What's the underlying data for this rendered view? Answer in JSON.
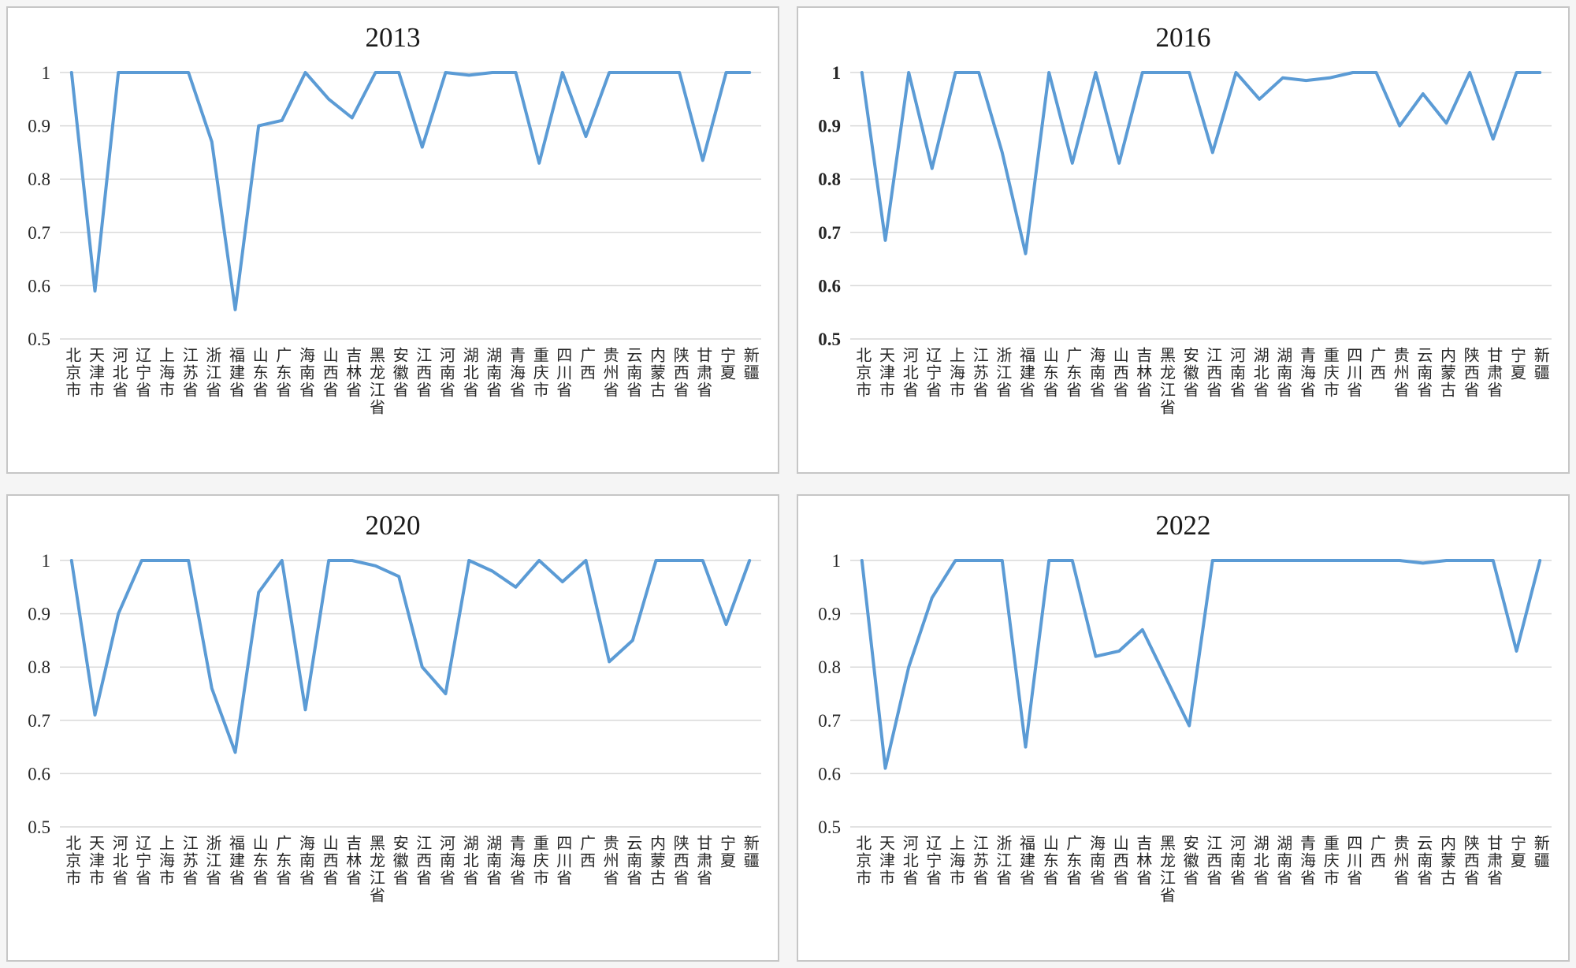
{
  "chart_data": [
    {
      "type": "line",
      "title": "2013",
      "categories": [
        "北京市",
        "天津市",
        "河北省",
        "辽宁省",
        "上海市",
        "江苏省",
        "浙江省",
        "福建省",
        "山东省",
        "广东省",
        "海南省",
        "山西省",
        "吉林省",
        "黑龙江省",
        "安徽省",
        "江西省",
        "河南省",
        "湖北省",
        "湖南省",
        "青海省",
        "重庆市",
        "四川省",
        "广西",
        "贵州省",
        "云南省",
        "内蒙古",
        "陕西省",
        "甘肃省",
        "宁夏",
        "新疆"
      ],
      "values": [
        1,
        0.59,
        1,
        1,
        1,
        1,
        0.87,
        0.555,
        0.9,
        0.91,
        1,
        0.95,
        0.915,
        1,
        1,
        0.86,
        1,
        0.995,
        1,
        1,
        0.83,
        1,
        0.88,
        1,
        1,
        1,
        1,
        0.835,
        1,
        1
      ],
      "ylim": [
        0.5,
        1.0
      ],
      "yticks": [
        0.5,
        0.6,
        0.7,
        0.8,
        0.9,
        1
      ],
      "ytick_labels": [
        "0.5",
        "0.6",
        "0.7",
        "0.8",
        "0.9",
        "1"
      ],
      "ytick_bold": false,
      "line_color": "#5B9BD5",
      "grid": true,
      "legend": "none"
    },
    {
      "type": "line",
      "title": "2016",
      "categories": [
        "北京市",
        "天津市",
        "河北省",
        "辽宁省",
        "上海市",
        "江苏省",
        "浙江省",
        "福建省",
        "山东省",
        "广东省",
        "海南省",
        "山西省",
        "吉林省",
        "黑龙江省",
        "安徽省",
        "江西省",
        "河南省",
        "湖北省",
        "湖南省",
        "青海省",
        "重庆市",
        "四川省",
        "广西",
        "贵州省",
        "云南省",
        "内蒙古",
        "陕西省",
        "甘肃省",
        "宁夏",
        "新疆"
      ],
      "values": [
        1,
        0.685,
        1,
        0.82,
        1,
        1,
        0.85,
        0.66,
        1,
        0.83,
        1,
        0.83,
        1,
        1,
        1,
        0.85,
        1,
        0.95,
        0.99,
        0.985,
        0.99,
        1,
        1,
        0.9,
        0.96,
        0.905,
        1,
        0.875,
        1,
        1
      ],
      "ylim": [
        0.5,
        1.0
      ],
      "yticks": [
        0.5,
        0.6,
        0.7,
        0.8,
        0.9,
        1
      ],
      "ytick_labels": [
        "0.5",
        "0.6",
        "0.7",
        "0.8",
        "0.9",
        "1"
      ],
      "ytick_bold": true,
      "line_color": "#5B9BD5",
      "grid": true,
      "legend": "none"
    },
    {
      "type": "line",
      "title": "2020",
      "categories": [
        "北京市",
        "天津市",
        "河北省",
        "辽宁省",
        "上海市",
        "江苏省",
        "浙江省",
        "福建省",
        "山东省",
        "广东省",
        "海南省",
        "山西省",
        "吉林省",
        "黑龙江省",
        "安徽省",
        "江西省",
        "河南省",
        "湖北省",
        "湖南省",
        "青海省",
        "重庆市",
        "四川省",
        "广西",
        "贵州省",
        "云南省",
        "内蒙古",
        "陕西省",
        "甘肃省",
        "宁夏",
        "新疆"
      ],
      "values": [
        1,
        0.71,
        0.9,
        1,
        1,
        1,
        0.76,
        0.64,
        0.94,
        1,
        0.72,
        1,
        1,
        0.99,
        0.97,
        0.8,
        0.75,
        1,
        0.98,
        0.95,
        1,
        0.96,
        1,
        0.81,
        0.85,
        1,
        1,
        1,
        0.88,
        1
      ],
      "ylim": [
        0.5,
        1.0
      ],
      "yticks": [
        0.5,
        0.6,
        0.7,
        0.8,
        0.9,
        1
      ],
      "ytick_labels": [
        "0.5",
        "0.6",
        "0.7",
        "0.8",
        "0.9",
        "1"
      ],
      "ytick_bold": false,
      "line_color": "#5B9BD5",
      "grid": true,
      "legend": "none"
    },
    {
      "type": "line",
      "title": "2022",
      "categories": [
        "北京市",
        "天津市",
        "河北省",
        "辽宁省",
        "上海市",
        "江苏省",
        "浙江省",
        "福建省",
        "山东省",
        "广东省",
        "海南省",
        "山西省",
        "吉林省",
        "黑龙江省",
        "安徽省",
        "江西省",
        "河南省",
        "湖北省",
        "湖南省",
        "青海省",
        "重庆市",
        "四川省",
        "广西",
        "贵州省",
        "云南省",
        "内蒙古",
        "陕西省",
        "甘肃省",
        "宁夏",
        "新疆"
      ],
      "values": [
        1,
        0.61,
        0.8,
        0.93,
        1,
        1,
        1,
        0.65,
        1,
        1,
        0.82,
        0.83,
        0.87,
        0.78,
        0.69,
        1,
        1,
        1,
        1,
        1,
        1,
        1,
        1,
        1,
        0.995,
        1,
        1,
        1,
        0.83,
        1
      ],
      "ylim": [
        0.5,
        1.0
      ],
      "yticks": [
        0.5,
        0.6,
        0.7,
        0.8,
        0.9,
        1
      ],
      "ytick_labels": [
        "0.5",
        "0.6",
        "0.7",
        "0.8",
        "0.9",
        "1"
      ],
      "ytick_bold": false,
      "line_color": "#5B9BD5",
      "grid": true,
      "legend": "none"
    }
  ]
}
